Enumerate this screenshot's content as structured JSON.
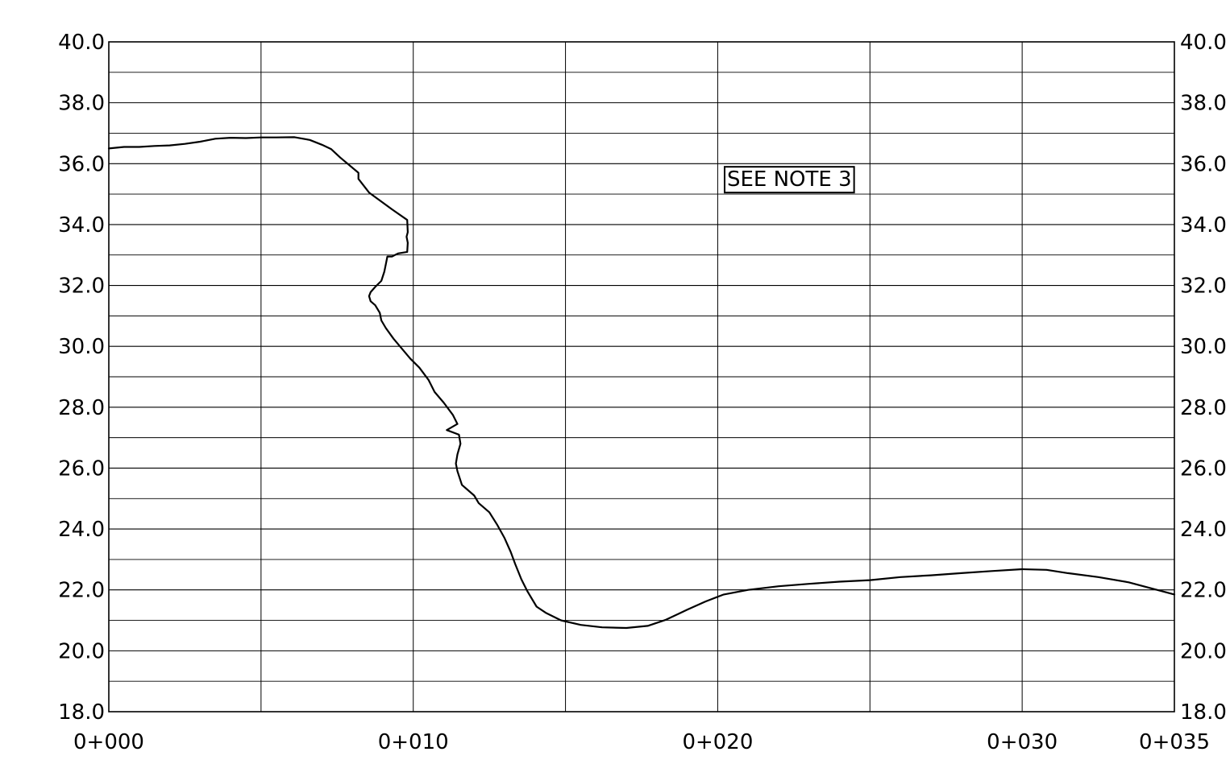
{
  "chart_data": {
    "type": "line",
    "title": "",
    "xlabel": "",
    "ylabel": "",
    "x_range_m": [
      0,
      35
    ],
    "ylim": [
      18.0,
      40.0
    ],
    "x_major_step_m": 5,
    "y_major_step": 2.0,
    "y_minor_step": 1.0,
    "grid": true,
    "x_tick_labels": [
      {
        "x": 0,
        "label": "0+000"
      },
      {
        "x": 10,
        "label": "0+010"
      },
      {
        "x": 20,
        "label": "0+020"
      },
      {
        "x": 30,
        "label": "0+030"
      },
      {
        "x": 35,
        "label": "0+035"
      }
    ],
    "y_tick_values": [
      18.0,
      20.0,
      22.0,
      24.0,
      26.0,
      28.0,
      30.0,
      32.0,
      34.0,
      36.0,
      38.0,
      40.0
    ],
    "y_tick_labels": [
      "18.0",
      "20.0",
      "22.0",
      "24.0",
      "26.0",
      "28.0",
      "30.0",
      "32.0",
      "34.0",
      "36.0",
      "38.0",
      "40.0"
    ],
    "annotations": [
      {
        "text": "SEE NOTE 3",
        "x": 20.2,
        "y": 35.5
      }
    ],
    "colors": {
      "line": "#000000",
      "grid": "#000000",
      "background": "#ffffff"
    },
    "series": [
      {
        "values_xy": [
          [
            0.0,
            36.5
          ],
          [
            0.5,
            36.55
          ],
          [
            1.0,
            36.55
          ],
          [
            1.5,
            36.58
          ],
          [
            2.0,
            36.6
          ],
          [
            2.5,
            36.65
          ],
          [
            3.0,
            36.72
          ],
          [
            3.5,
            36.82
          ],
          [
            4.0,
            36.85
          ],
          [
            4.5,
            36.84
          ],
          [
            5.0,
            36.86
          ],
          [
            5.5,
            36.86
          ],
          [
            6.1,
            36.87
          ],
          [
            6.6,
            36.78
          ],
          [
            7.0,
            36.62
          ],
          [
            7.3,
            36.48
          ],
          [
            7.6,
            36.2
          ],
          [
            8.2,
            35.7
          ],
          [
            8.2,
            35.5
          ],
          [
            8.55,
            35.05
          ],
          [
            9.3,
            34.5
          ],
          [
            9.8,
            34.15
          ],
          [
            9.82,
            33.75
          ],
          [
            9.78,
            33.6
          ],
          [
            9.82,
            33.4
          ],
          [
            9.8,
            33.1
          ],
          [
            9.5,
            33.05
          ],
          [
            9.3,
            32.95
          ],
          [
            9.15,
            32.95
          ],
          [
            9.1,
            32.7
          ],
          [
            9.05,
            32.45
          ],
          [
            8.95,
            32.15
          ],
          [
            8.75,
            31.95
          ],
          [
            8.6,
            31.78
          ],
          [
            8.55,
            31.65
          ],
          [
            8.6,
            31.48
          ],
          [
            8.75,
            31.35
          ],
          [
            8.9,
            31.1
          ],
          [
            8.95,
            30.85
          ],
          [
            9.1,
            30.6
          ],
          [
            9.35,
            30.25
          ],
          [
            9.9,
            29.6
          ],
          [
            10.2,
            29.3
          ],
          [
            10.5,
            28.9
          ],
          [
            10.7,
            28.5
          ],
          [
            11.0,
            28.15
          ],
          [
            11.3,
            27.75
          ],
          [
            11.45,
            27.45
          ],
          [
            11.1,
            27.25
          ],
          [
            11.5,
            27.1
          ],
          [
            11.55,
            26.8
          ],
          [
            11.45,
            26.45
          ],
          [
            11.4,
            26.15
          ],
          [
            11.45,
            25.9
          ],
          [
            11.6,
            25.45
          ],
          [
            12.0,
            25.1
          ],
          [
            12.15,
            24.85
          ],
          [
            12.5,
            24.55
          ],
          [
            12.75,
            24.15
          ],
          [
            13.0,
            23.7
          ],
          [
            13.2,
            23.25
          ],
          [
            13.35,
            22.85
          ],
          [
            13.55,
            22.35
          ],
          [
            13.75,
            21.95
          ],
          [
            14.05,
            21.45
          ],
          [
            14.35,
            21.25
          ],
          [
            14.85,
            21.0
          ],
          [
            15.5,
            20.85
          ],
          [
            16.2,
            20.77
          ],
          [
            17.0,
            20.75
          ],
          [
            17.7,
            20.82
          ],
          [
            18.3,
            21.02
          ],
          [
            19.0,
            21.35
          ],
          [
            19.6,
            21.62
          ],
          [
            20.2,
            21.85
          ],
          [
            21.0,
            22.0
          ],
          [
            22.0,
            22.12
          ],
          [
            23.0,
            22.2
          ],
          [
            24.0,
            22.27
          ],
          [
            25.0,
            22.32
          ],
          [
            26.0,
            22.42
          ],
          [
            27.0,
            22.48
          ],
          [
            28.0,
            22.55
          ],
          [
            29.0,
            22.62
          ],
          [
            30.0,
            22.68
          ],
          [
            30.8,
            22.66
          ],
          [
            31.5,
            22.55
          ],
          [
            32.5,
            22.42
          ],
          [
            33.5,
            22.25
          ],
          [
            35.0,
            21.85
          ]
        ]
      }
    ]
  }
}
